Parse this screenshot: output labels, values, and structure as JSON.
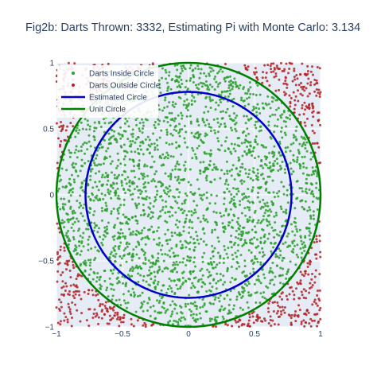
{
  "chart_data": {
    "type": "scatter",
    "title": "Fig2b: Darts Thrown: 3332, Estimating Pi with Monte Carlo: 3.134",
    "xlabel": "",
    "ylabel": "",
    "xlim": [
      -1,
      1
    ],
    "ylim": [
      -1,
      1
    ],
    "x_ticks": [
      -1,
      -0.5,
      0,
      0.5,
      1
    ],
    "y_ticks": [
      -1,
      -0.5,
      0,
      0.5,
      1
    ],
    "x_tick_labels": [
      "−1",
      "−0.5",
      "0",
      "0.5",
      "1"
    ],
    "y_tick_labels": [
      "−1",
      "−0.5",
      "0",
      "0.5",
      "1"
    ],
    "grid": true,
    "legend_position": "top-left",
    "darts_thrown": 3332,
    "pi_estimate": 3.134,
    "series": [
      {
        "name": "Darts Inside Circle",
        "kind": "markers",
        "color": "#2ca02c",
        "count": 2611
      },
      {
        "name": "Darts Outside Circle",
        "kind": "markers",
        "color": "#b22222",
        "count": 721
      },
      {
        "name": "Estimated Circle",
        "kind": "line",
        "color": "#0000cd",
        "center": [
          0,
          0
        ],
        "radius": 0.78
      },
      {
        "name": "Unit Circle",
        "kind": "line",
        "color": "#008000",
        "center": [
          0,
          0
        ],
        "radius": 1.0
      }
    ],
    "colors": {
      "plot_background": "#e5ecf6",
      "grid": "#ffffff"
    }
  }
}
